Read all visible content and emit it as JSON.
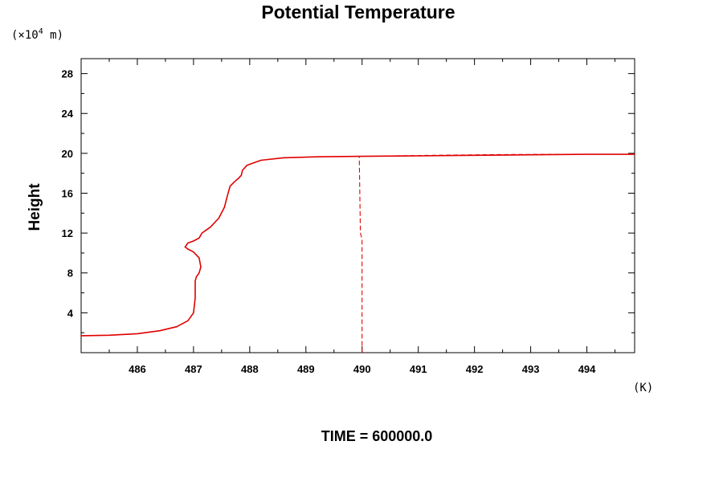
{
  "chart_data": {
    "type": "line",
    "title": "Potential Temperature",
    "ylabel": "Height",
    "y_unit_prefix": "(×10",
    "y_unit_exponent": "4",
    "y_unit_suffix": " m)",
    "x_unit": "(K)",
    "footer": "TIME = 600000.0",
    "xlim": [
      485.0,
      494.85
    ],
    "ylim": [
      0.0,
      29.5
    ],
    "x_ticks": [
      486,
      487,
      488,
      489,
      490,
      491,
      492,
      493,
      494
    ],
    "x_tick_labels": [
      "486",
      "487",
      "488",
      "489",
      "490",
      "491",
      "492",
      "493",
      "494"
    ],
    "y_ticks": [
      4,
      8,
      12,
      16,
      20,
      24,
      28
    ],
    "y_tick_labels": [
      "4",
      "8",
      "12",
      "16",
      "20",
      "24",
      "28"
    ],
    "line_color": "#e00000",
    "series": [
      {
        "style": "solid",
        "x": [
          485.0,
          485.5,
          486.0,
          486.4,
          486.7,
          486.9,
          487.0,
          487.03,
          487.03,
          487.05,
          487.1,
          487.13,
          487.1,
          487.0,
          486.9,
          486.85,
          486.9,
          487.0,
          487.1,
          487.15,
          487.3,
          487.45,
          487.55,
          487.6,
          487.65,
          487.72,
          487.8,
          487.85,
          487.87,
          487.95,
          488.2,
          488.6,
          489.2,
          490.0,
          491.0,
          492.0,
          493.0,
          494.0,
          494.85
        ],
        "y": [
          1.7,
          1.75,
          1.9,
          2.2,
          2.6,
          3.2,
          4.0,
          5.5,
          7.2,
          7.6,
          8.0,
          8.6,
          9.5,
          10.1,
          10.4,
          10.6,
          11.0,
          11.2,
          11.5,
          12.0,
          12.6,
          13.5,
          14.6,
          15.7,
          16.7,
          17.1,
          17.5,
          17.8,
          18.3,
          18.8,
          19.3,
          19.55,
          19.65,
          19.7,
          19.75,
          19.8,
          19.85,
          19.9,
          19.9
        ]
      },
      {
        "style": "dashed",
        "x": [
          490.0,
          490.0,
          489.97,
          489.96,
          489.95
        ],
        "y": [
          0.0,
          11.4,
          12.0,
          16.0,
          19.7
        ]
      },
      {
        "style": "dashed",
        "x": [
          490.6,
          491.5,
          492.5,
          493.5
        ],
        "y": [
          19.75,
          19.82,
          19.88,
          19.9
        ]
      }
    ]
  }
}
